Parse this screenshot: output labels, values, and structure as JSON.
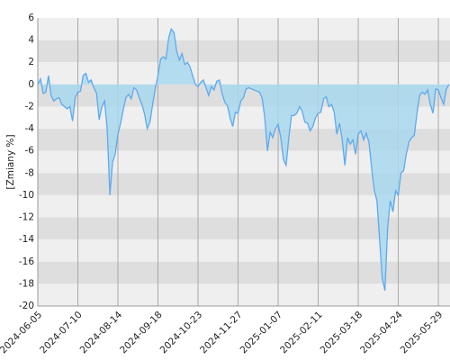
{
  "chart_data": {
    "type": "area",
    "y_label": "[Zmiany %]",
    "categories": [
      "2024-06-05",
      null,
      null,
      null,
      null,
      null,
      null,
      null,
      null,
      null,
      null,
      null,
      null,
      null,
      null,
      "2024-07-10",
      null,
      null,
      null,
      null,
      null,
      null,
      null,
      null,
      null,
      null,
      null,
      null,
      null,
      null,
      "2024-08-14",
      null,
      null,
      null,
      null,
      null,
      null,
      null,
      null,
      null,
      null,
      null,
      null,
      null,
      null,
      "2024-09-18",
      null,
      null,
      null,
      null,
      null,
      null,
      null,
      null,
      null,
      null,
      null,
      null,
      null,
      null,
      "2024-10-23",
      null,
      null,
      null,
      null,
      null,
      null,
      null,
      null,
      null,
      null,
      null,
      null,
      null,
      null,
      "2024-11-27",
      null,
      null,
      null,
      null,
      null,
      null,
      null,
      null,
      null,
      null,
      null,
      null,
      null,
      null,
      "2025-01-07",
      null,
      null,
      null,
      null,
      null,
      null,
      null,
      null,
      null,
      null,
      null,
      null,
      null,
      null,
      "2025-02-11",
      null,
      null,
      null,
      null,
      null,
      null,
      null,
      null,
      null,
      null,
      null,
      null,
      null,
      null,
      "2025-03-18",
      null,
      null,
      null,
      null,
      null,
      null,
      null,
      null,
      null,
      null,
      null,
      null,
      null,
      null,
      "2025-04-24",
      null,
      null,
      null,
      null,
      null,
      null,
      null,
      null,
      null,
      null,
      null,
      null,
      null,
      null,
      "2025-05-29",
      null,
      null,
      null,
      null
    ],
    "values": [
      0,
      0.5,
      -0.8,
      -0.7,
      0.8,
      -1.0,
      -1.5,
      -1.3,
      -1.2,
      -1.8,
      -2.0,
      -2.2,
      -2.0,
      -3.3,
      -1.2,
      -0.7,
      -0.6,
      0.8,
      1.0,
      0.2,
      0.4,
      -0.3,
      -0.8,
      -3.2,
      -2.0,
      -1.5,
      -4.0,
      -10.0,
      -7.0,
      -6.3,
      -4.5,
      -3.5,
      -2.3,
      -1.2,
      -0.9,
      -1.3,
      -0.3,
      -0.5,
      -1.2,
      -1.8,
      -2.7,
      -4.0,
      -3.4,
      -1.8,
      -0.4,
      0.8,
      2.3,
      2.5,
      2.3,
      4.2,
      5.0,
      4.7,
      3.0,
      2.2,
      2.8,
      1.8,
      2.0,
      1.6,
      0.8,
      0.0,
      -0.2,
      0.2,
      0.4,
      -0.3,
      -1.0,
      -0.2,
      -0.5,
      0.3,
      0.4,
      -0.8,
      -1.6,
      -1.9,
      -3.0,
      -3.8,
      -2.5,
      -2.6,
      -1.5,
      -1.2,
      -0.4,
      -0.3,
      -0.4,
      -0.5,
      -0.6,
      -0.7,
      -1.2,
      -3.0,
      -6.0,
      -4.3,
      -4.8,
      -4.0,
      -3.6,
      -4.8,
      -6.8,
      -7.3,
      -4.8,
      -2.8,
      -2.8,
      -2.6,
      -2.0,
      -2.4,
      -3.4,
      -3.5,
      -4.2,
      -3.8,
      -3.0,
      -2.6,
      -2.5,
      -1.3,
      -1.1,
      -2.0,
      -1.8,
      -2.5,
      -4.5,
      -3.5,
      -5.0,
      -7.3,
      -4.8,
      -5.4,
      -5.0,
      -6.3,
      -4.5,
      -4.2,
      -5.0,
      -4.4,
      -5.2,
      -7.5,
      -9.5,
      -10.5,
      -14.0,
      -17.5,
      -18.6,
      -13.0,
      -10.5,
      -11.5,
      -9.6,
      -10.0,
      -8.0,
      -7.8,
      -6.3,
      -5.2,
      -4.8,
      -4.6,
      -2.6,
      -1.0,
      -0.7,
      -0.9,
      -0.5,
      -1.8,
      -2.6,
      -0.4,
      -0.5,
      -1.2,
      -1.8,
      -0.4,
      0
    ],
    "color": "#5ea9ec",
    "fill": "#a9d8ef",
    "ylim": [
      -20,
      6
    ],
    "yticks": [
      6,
      4,
      2,
      0,
      -2,
      -4,
      -6,
      -8,
      -10,
      -12,
      -14,
      -16,
      -18,
      -20
    ],
    "grid": true,
    "band_colors": [
      "#efefef",
      "#dedede"
    ]
  }
}
